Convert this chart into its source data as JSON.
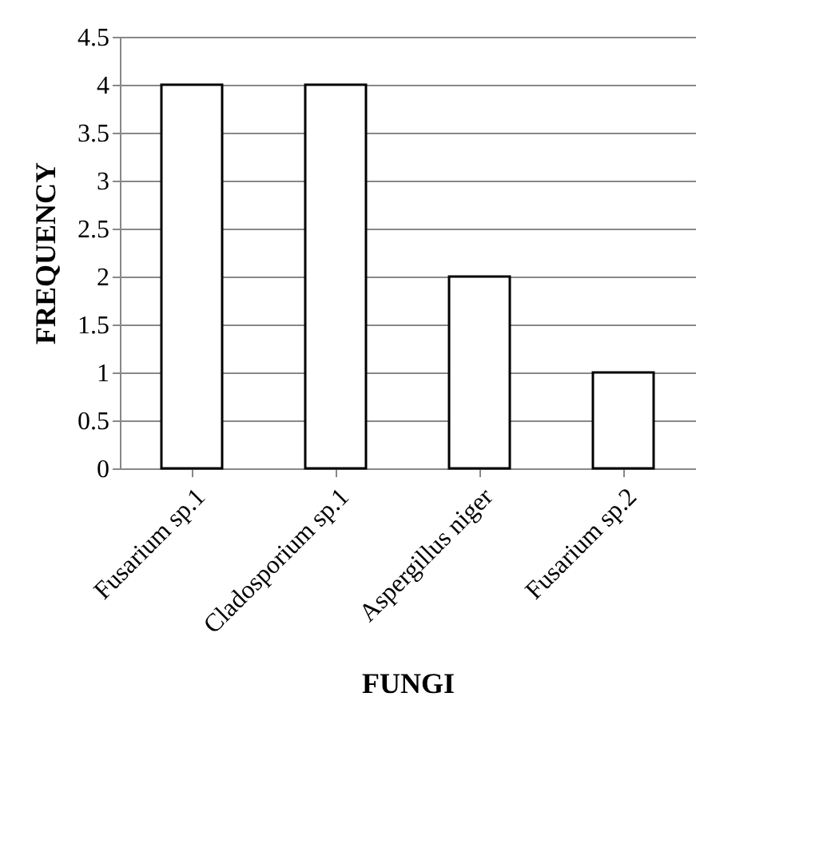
{
  "chart_data": {
    "type": "bar",
    "xlabel": "FUNGI",
    "ylabel": "FREQUENCY",
    "categories": [
      "Fusarium sp.1",
      "Cladosporium sp.1",
      "Aspergillus niger",
      "Fusarium sp.2"
    ],
    "values": [
      4,
      4,
      2,
      1
    ],
    "color": "#ffffff",
    "ylim": [
      0,
      4.5
    ],
    "yticks": [
      0,
      0.5,
      1,
      1.5,
      2,
      2.5,
      3,
      3.5,
      4,
      4.5
    ],
    "grid": "y"
  }
}
